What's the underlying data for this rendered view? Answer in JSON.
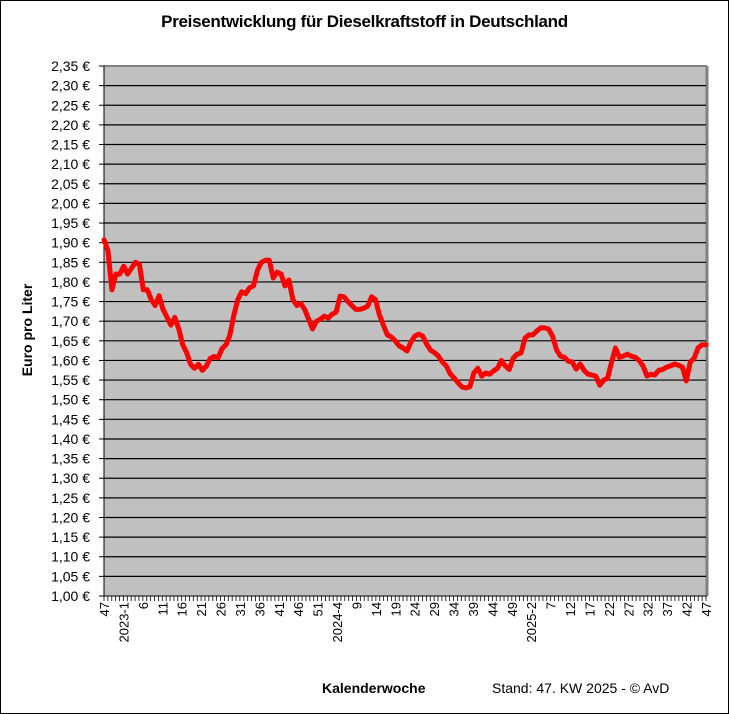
{
  "chart": {
    "title": "Preisentwicklung für Dieselkraftstoff in Deutschland",
    "ylabel": "Euro pro Liter",
    "xlabel": "Kalenderwoche",
    "stand": "Stand: 47. KW 2025 - © AvD"
  },
  "colors": {
    "plot_background": "#c0c0c0",
    "line": "#ff0000",
    "grid": "#000000"
  },
  "chart_data": {
    "type": "line",
    "title": "Preisentwicklung für Dieselkraftstoff in Deutschland",
    "xlabel": "Kalenderwoche",
    "ylabel": "Euro pro Liter",
    "ylim": [
      1.0,
      2.35
    ],
    "ytick_step": 0.05,
    "yticks": [
      "2,35 €",
      "2,30 €",
      "2,25 €",
      "2,20 €",
      "2,15 €",
      "2,10 €",
      "2,05 €",
      "2,00 €",
      "1,95 €",
      "1,90 €",
      "1,85 €",
      "1,80 €",
      "1,75 €",
      "1,70 €",
      "1,65 €",
      "1,60 €",
      "1,55 €",
      "1,50 €",
      "1,45 €",
      "1,40 €",
      "1,35 €",
      "1,30 €",
      "1,25 €",
      "1,20 €",
      "1,15 €",
      "1,10 €",
      "1,05 €",
      "1,00 €"
    ],
    "x_range": "KW 47/2022 – KW 47/2025 (weekly)",
    "xtick_labels": [
      "47",
      "2023-1",
      "6",
      "11",
      "16",
      "21",
      "26",
      "31",
      "36",
      "41",
      "46",
      "51",
      "2024-4",
      "9",
      "14",
      "19",
      "24",
      "29",
      "34",
      "39",
      "44",
      "49",
      "2025-2",
      "7",
      "12",
      "17",
      "22",
      "27",
      "32",
      "37",
      "42",
      "47"
    ],
    "xtick_every": 5,
    "grid": true,
    "legend": null,
    "series": [
      {
        "name": "Diesel",
        "values": [
          1.907,
          1.88,
          1.78,
          1.82,
          1.82,
          1.84,
          1.82,
          1.835,
          1.85,
          1.845,
          1.78,
          1.78,
          1.755,
          1.74,
          1.765,
          1.73,
          1.71,
          1.69,
          1.71,
          1.68,
          1.64,
          1.62,
          1.59,
          1.58,
          1.59,
          1.575,
          1.585,
          1.605,
          1.61,
          1.607,
          1.63,
          1.64,
          1.665,
          1.715,
          1.755,
          1.775,
          1.77,
          1.785,
          1.79,
          1.83,
          1.85,
          1.855,
          1.855,
          1.81,
          1.825,
          1.82,
          1.79,
          1.805,
          1.755,
          1.74,
          1.745,
          1.73,
          1.705,
          1.68,
          1.7,
          1.705,
          1.713,
          1.708,
          1.718,
          1.723,
          1.764,
          1.762,
          1.75,
          1.74,
          1.73,
          1.73,
          1.733,
          1.738,
          1.762,
          1.755,
          1.716,
          1.69,
          1.665,
          1.66,
          1.65,
          1.637,
          1.632,
          1.624,
          1.647,
          1.662,
          1.667,
          1.662,
          1.642,
          1.626,
          1.62,
          1.611,
          1.596,
          1.586,
          1.566,
          1.555,
          1.543,
          1.532,
          1.53,
          1.533,
          1.568,
          1.58,
          1.56,
          1.568,
          1.565,
          1.573,
          1.58,
          1.6,
          1.586,
          1.577,
          1.606,
          1.616,
          1.619,
          1.657,
          1.665,
          1.665,
          1.675,
          1.683,
          1.683,
          1.68,
          1.662,
          1.627,
          1.611,
          1.608,
          1.598,
          1.596,
          1.578,
          1.591,
          1.575,
          1.565,
          1.563,
          1.56,
          1.537,
          1.55,
          1.555,
          1.596,
          1.632,
          1.608,
          1.611,
          1.616,
          1.611,
          1.608,
          1.6,
          1.586,
          1.56,
          1.565,
          1.563,
          1.575,
          1.577,
          1.583,
          1.586,
          1.591,
          1.588,
          1.583,
          1.548,
          1.596,
          1.606,
          1.632,
          1.64,
          1.64
        ]
      }
    ]
  }
}
